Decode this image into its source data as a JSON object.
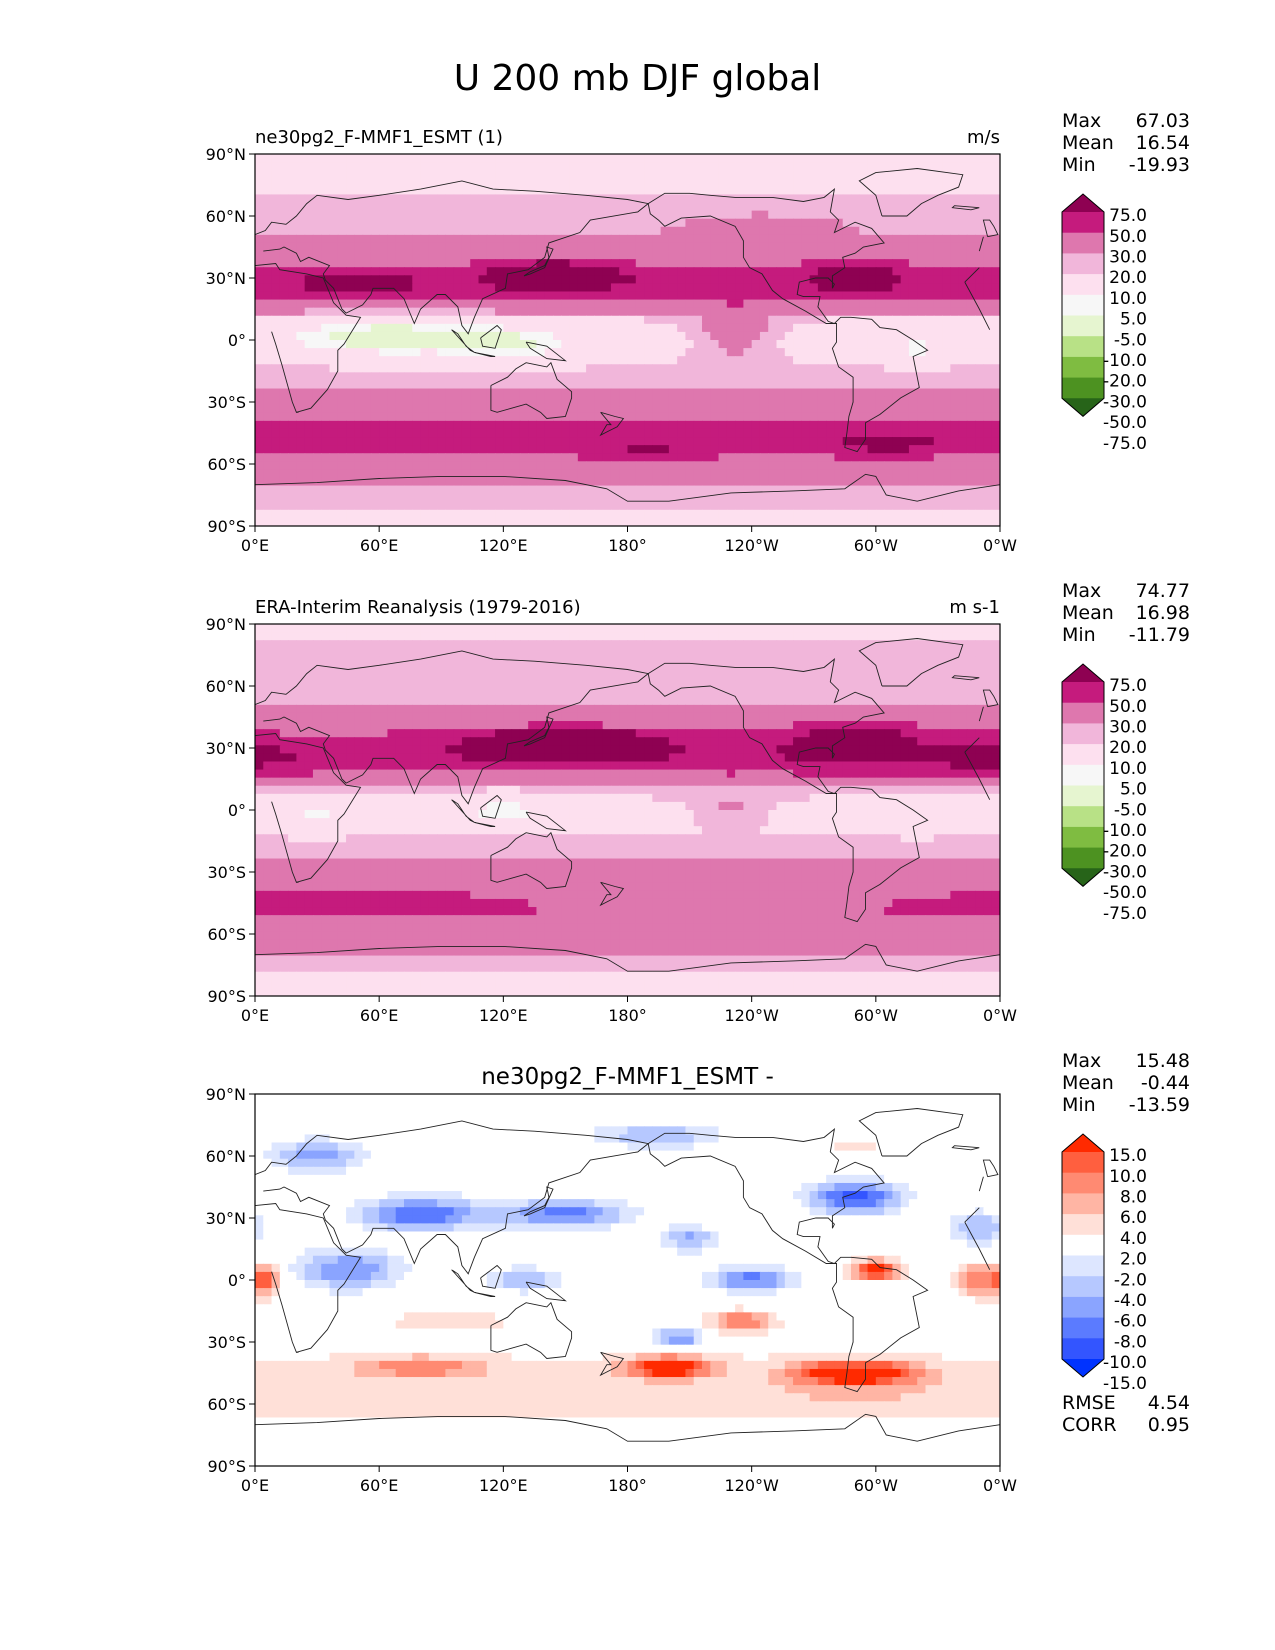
{
  "figure_title": "U 200 mb DJF global",
  "colors": {
    "sequential": [
      "#276419",
      "#4d9221",
      "#7fbc41",
      "#b8e186",
      "#e6f5d0",
      "#f7f7f7",
      "#fde0ef",
      "#f1b6da",
      "#de77ae",
      "#c51b7d",
      "#8e0152"
    ],
    "diverging": [
      "#0033ff",
      "#3355ff",
      "#5b7bff",
      "#8aa4ff",
      "#b6c8ff",
      "#dde6ff",
      "#ffffff",
      "#ffe0d8",
      "#ffb5a4",
      "#ff8a72",
      "#ff5f3f",
      "#ff2a00"
    ]
  },
  "chart_data": [
    {
      "type": "heatmap",
      "map_type": "filled contour map",
      "title_left": "ne30pg2_F-MMF1_ESMT (1)",
      "title_right": "m/s",
      "title_center": "",
      "stats": {
        "max_label": "Max",
        "max": "67.03",
        "mean_label": "Mean",
        "mean": "16.54",
        "min_label": "Min",
        "min": "-19.93"
      },
      "xticks": [
        "0°E",
        "60°E",
        "120°E",
        "180°",
        "120°W",
        "60°W",
        "0°W"
      ],
      "yticks": [
        "90°N",
        "60°N",
        "30°N",
        "0°",
        "30°S",
        "60°S",
        "90°S"
      ],
      "xlim": [
        0,
        360
      ],
      "ylim": [
        -90,
        90
      ],
      "colorbar": {
        "levels": [
          "75.0",
          "50.0",
          "30.0",
          "20.0",
          "10.0",
          "5.0",
          "-5.0",
          "-10.0",
          "-20.0",
          "-30.0",
          "-50.0",
          "-75.0"
        ],
        "palette": "sequential"
      },
      "field": {
        "bands": [
          [
            -90,
            2
          ],
          [
            -80,
            6
          ],
          [
            -72,
            9
          ],
          [
            -62,
            13
          ],
          [
            -55,
            20
          ],
          [
            -48,
            24
          ],
          [
            -40,
            22
          ],
          [
            -30,
            13
          ],
          [
            -20,
            8
          ],
          [
            -10,
            4
          ],
          [
            0,
            0
          ],
          [
            10,
            5
          ],
          [
            20,
            22
          ],
          [
            27,
            28
          ],
          [
            33,
            22
          ],
          [
            42,
            13
          ],
          [
            52,
            9
          ],
          [
            62,
            6
          ],
          [
            75,
            4
          ],
          [
            90,
            2
          ]
        ],
        "blobs": [
          {
            "lon": 65,
            "lat": 2,
            "dlon": 45,
            "dlat": 9,
            "amp": -16
          },
          {
            "lon": 125,
            "lat": -2,
            "dlon": 28,
            "dlat": 9,
            "amp": -11
          },
          {
            "lon": 145,
            "lat": 32,
            "dlon": 30,
            "dlat": 6,
            "amp": 28
          },
          {
            "lon": 50,
            "lat": 28,
            "dlon": 25,
            "dlat": 5,
            "amp": 15
          },
          {
            "lon": 290,
            "lat": 32,
            "dlon": 22,
            "dlat": 7,
            "amp": 16
          },
          {
            "lon": 232,
            "lat": 2,
            "dlon": 22,
            "dlat": 12,
            "amp": 12
          },
          {
            "lon": 320,
            "lat": -5,
            "dlon": 15,
            "dlat": 7,
            "amp": -8
          },
          {
            "lon": 190,
            "lat": -55,
            "dlon": 25,
            "dlat": 5,
            "amp": 12
          },
          {
            "lon": 305,
            "lat": -50,
            "dlon": 30,
            "dlat": 6,
            "amp": 12
          },
          {
            "lon": 245,
            "lat": 55,
            "dlon": 40,
            "dlat": 8,
            "amp": 6
          }
        ]
      }
    },
    {
      "type": "heatmap",
      "map_type": "filled contour map",
      "title_left": "ERA-Interim Reanalysis (1979-2016)",
      "title_right": "m s-1",
      "title_center": "",
      "stats": {
        "max_label": "Max",
        "max": "74.77",
        "mean_label": "Mean",
        "mean": "16.98",
        "min_label": "Min",
        "min": "-11.79"
      },
      "xticks": [
        "0°E",
        "60°E",
        "120°E",
        "180°",
        "120°W",
        "60°W",
        "0°W"
      ],
      "yticks": [
        "90°N",
        "60°N",
        "30°N",
        "0°",
        "30°S",
        "60°S",
        "90°S"
      ],
      "xlim": [
        0,
        360
      ],
      "ylim": [
        -90,
        90
      ],
      "colorbar": {
        "levels": [
          "75.0",
          "50.0",
          "30.0",
          "20.0",
          "10.0",
          "5.0",
          "-5.0",
          "-10.0",
          "-20.0",
          "-30.0",
          "-50.0",
          "-75.0"
        ],
        "palette": "sequential"
      },
      "field": {
        "bands": [
          [
            -90,
            2
          ],
          [
            -80,
            5
          ],
          [
            -72,
            9
          ],
          [
            -62,
            13
          ],
          [
            -55,
            17
          ],
          [
            -48,
            20
          ],
          [
            -40,
            18
          ],
          [
            -30,
            12
          ],
          [
            -20,
            8
          ],
          [
            -10,
            4
          ],
          [
            0,
            2
          ],
          [
            10,
            7
          ],
          [
            20,
            24
          ],
          [
            27,
            30
          ],
          [
            33,
            24
          ],
          [
            42,
            15
          ],
          [
            52,
            10
          ],
          [
            62,
            8
          ],
          [
            75,
            6
          ],
          [
            90,
            4
          ]
        ],
        "blobs": [
          {
            "lon": 30,
            "lat": -3,
            "dlon": 20,
            "dlat": 7,
            "amp": -8
          },
          {
            "lon": 120,
            "lat": 0,
            "dlon": 30,
            "dlat": 8,
            "amp": -9
          },
          {
            "lon": 150,
            "lat": 33,
            "dlon": 40,
            "dlat": 6,
            "amp": 32
          },
          {
            "lon": 290,
            "lat": 35,
            "dlon": 28,
            "dlat": 8,
            "amp": 22
          },
          {
            "lon": 350,
            "lat": 25,
            "dlon": 20,
            "dlat": 7,
            "amp": 10
          },
          {
            "lon": 230,
            "lat": 0,
            "dlon": 18,
            "dlat": 8,
            "amp": 8
          },
          {
            "lon": 320,
            "lat": -5,
            "dlon": 12,
            "dlat": 6,
            "amp": -6
          },
          {
            "lon": 40,
            "lat": -45,
            "dlon": 60,
            "dlat": 6,
            "amp": 8
          }
        ]
      }
    },
    {
      "type": "heatmap",
      "map_type": "filled contour map",
      "title_left": "",
      "title_right": "",
      "title_center": "ne30pg2_F-MMF1_ESMT -",
      "stats": {
        "max_label": "Max",
        "max": "15.48",
        "mean_label": "Mean",
        "mean": "-0.44",
        "min_label": "Min",
        "min": "-13.59"
      },
      "extra_stats": {
        "rmse_label": "RMSE",
        "rmse": "4.54",
        "corr_label": "CORR",
        "corr": "0.95"
      },
      "xticks": [
        "0°E",
        "60°E",
        "120°E",
        "180°",
        "120°W",
        "60°W",
        "0°W"
      ],
      "yticks": [
        "90°N",
        "60°N",
        "30°N",
        "0°",
        "30°S",
        "60°S",
        "90°S"
      ],
      "xlim": [
        0,
        360
      ],
      "ylim": [
        -90,
        90
      ],
      "colorbar": {
        "levels": [
          "15.0",
          "10.0",
          "8.0",
          "6.0",
          "4.0",
          "2.0",
          "-2.0",
          "-4.0",
          "-6.0",
          "-8.0",
          "-10.0",
          "-15.0"
        ],
        "palette": "diverging"
      },
      "field": {
        "bands": [
          [
            -90,
            -1
          ],
          [
            -75,
            1
          ],
          [
            -65,
            2
          ],
          [
            -58,
            4
          ],
          [
            -50,
            3
          ],
          [
            -40,
            2
          ],
          [
            -30,
            1
          ],
          [
            0,
            0
          ],
          [
            30,
            0
          ],
          [
            60,
            0
          ],
          [
            90,
            0
          ]
        ],
        "blobs": [
          {
            "lon": 80,
            "lat": 32,
            "dlon": 30,
            "dlat": 8,
            "amp": -10
          },
          {
            "lon": 150,
            "lat": 32,
            "dlon": 30,
            "dlat": 7,
            "amp": -9
          },
          {
            "lon": 30,
            "lat": 60,
            "dlon": 22,
            "dlat": 8,
            "amp": -7
          },
          {
            "lon": 195,
            "lat": 70,
            "dlon": 30,
            "dlat": 6,
            "amp": -6
          },
          {
            "lon": 290,
            "lat": 40,
            "dlon": 22,
            "dlat": 8,
            "amp": -11
          },
          {
            "lon": 210,
            "lat": 20,
            "dlon": 12,
            "dlat": 6,
            "amp": -7
          },
          {
            "lon": 240,
            "lat": 0,
            "dlon": 20,
            "dlat": 6,
            "amp": -9
          },
          {
            "lon": 45,
            "lat": 5,
            "dlon": 25,
            "dlat": 10,
            "amp": -8
          },
          {
            "lon": 130,
            "lat": 0,
            "dlon": 18,
            "dlat": 6,
            "amp": -6
          },
          {
            "lon": 350,
            "lat": 25,
            "dlon": 15,
            "dlat": 8,
            "amp": -6
          },
          {
            "lon": 300,
            "lat": 5,
            "dlon": 12,
            "dlat": 5,
            "amp": 12
          },
          {
            "lon": 350,
            "lat": 0,
            "dlon": 12,
            "dlat": 8,
            "amp": 8
          },
          {
            "lon": 5,
            "lat": 0,
            "dlon": 8,
            "dlat": 8,
            "amp": 8
          },
          {
            "lon": 235,
            "lat": -20,
            "dlon": 15,
            "dlat": 5,
            "amp": 8
          },
          {
            "lon": 205,
            "lat": -28,
            "dlon": 12,
            "dlat": 5,
            "amp": -9
          },
          {
            "lon": 200,
            "lat": -42,
            "dlon": 20,
            "dlat": 5,
            "amp": 12
          },
          {
            "lon": 80,
            "lat": -42,
            "dlon": 30,
            "dlat": 5,
            "amp": 6
          },
          {
            "lon": 290,
            "lat": -45,
            "dlon": 30,
            "dlat": 6,
            "amp": 12
          },
          {
            "lon": 95,
            "lat": -20,
            "dlon": 30,
            "dlat": 5,
            "amp": 3
          },
          {
            "lon": 290,
            "lat": 65,
            "dlon": 15,
            "dlat": 5,
            "amp": 3
          }
        ]
      }
    }
  ]
}
